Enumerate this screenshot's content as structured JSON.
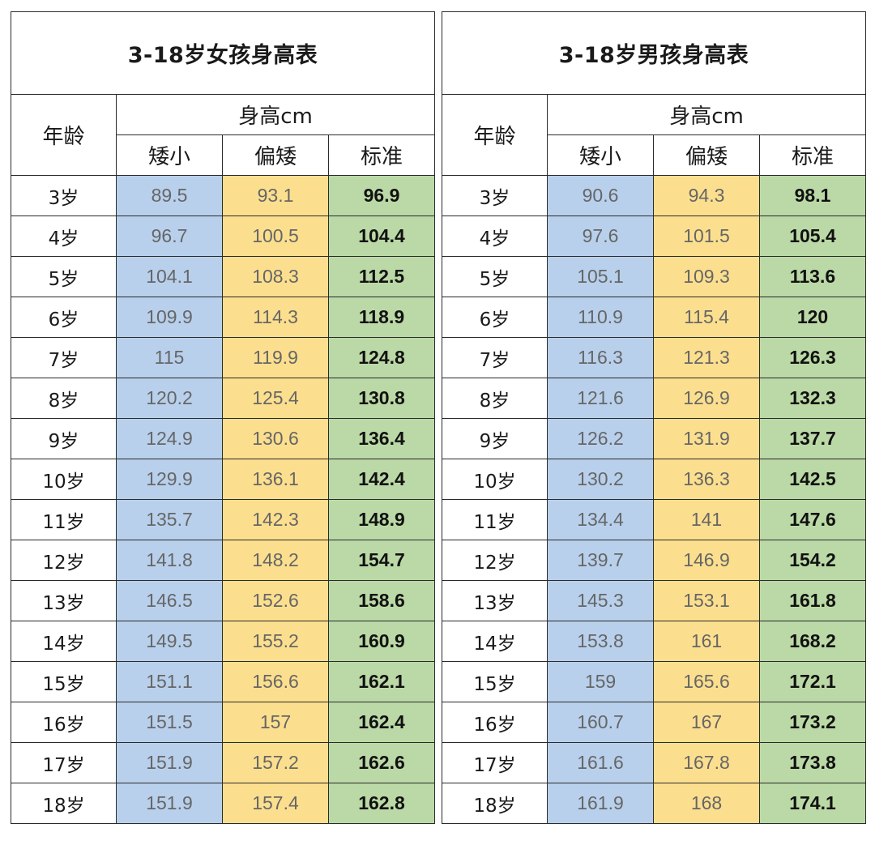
{
  "girls": {
    "title": "3-18岁女孩身高表",
    "age_header": "年龄",
    "height_header": "身高cm",
    "col_short": "矮小",
    "col_slightly_short": "偏矮",
    "col_standard": "标准",
    "rows": [
      {
        "age": "3岁",
        "short": "89.5",
        "slight": "93.1",
        "standard": "96.9"
      },
      {
        "age": "4岁",
        "short": "96.7",
        "slight": "100.5",
        "standard": "104.4"
      },
      {
        "age": "5岁",
        "short": "104.1",
        "slight": "108.3",
        "standard": "112.5"
      },
      {
        "age": "6岁",
        "short": "109.9",
        "slight": "114.3",
        "standard": "118.9"
      },
      {
        "age": "7岁",
        "short": "115",
        "slight": "119.9",
        "standard": "124.8"
      },
      {
        "age": "8岁",
        "short": "120.2",
        "slight": "125.4",
        "standard": "130.8"
      },
      {
        "age": "9岁",
        "short": "124.9",
        "slight": "130.6",
        "standard": "136.4"
      },
      {
        "age": "10岁",
        "short": "129.9",
        "slight": "136.1",
        "standard": "142.4"
      },
      {
        "age": "11岁",
        "short": "135.7",
        "slight": "142.3",
        "standard": "148.9"
      },
      {
        "age": "12岁",
        "short": "141.8",
        "slight": "148.2",
        "standard": "154.7"
      },
      {
        "age": "13岁",
        "short": "146.5",
        "slight": "152.6",
        "standard": "158.6"
      },
      {
        "age": "14岁",
        "short": "149.5",
        "slight": "155.2",
        "standard": "160.9"
      },
      {
        "age": "15岁",
        "short": "151.1",
        "slight": "156.6",
        "standard": "162.1"
      },
      {
        "age": "16岁",
        "short": "151.5",
        "slight": "157",
        "standard": "162.4"
      },
      {
        "age": "17岁",
        "short": "151.9",
        "slight": "157.2",
        "standard": "162.6"
      },
      {
        "age": "18岁",
        "short": "151.9",
        "slight": "157.4",
        "standard": "162.8"
      }
    ]
  },
  "boys": {
    "title": "3-18岁男孩身高表",
    "age_header": "年龄",
    "height_header": "身高cm",
    "col_short": "矮小",
    "col_slightly_short": "偏矮",
    "col_standard": "标准",
    "rows": [
      {
        "age": "3岁",
        "short": "90.6",
        "slight": "94.3",
        "standard": "98.1"
      },
      {
        "age": "4岁",
        "short": "97.6",
        "slight": "101.5",
        "standard": "105.4"
      },
      {
        "age": "5岁",
        "short": "105.1",
        "slight": "109.3",
        "standard": "113.6"
      },
      {
        "age": "6岁",
        "short": "110.9",
        "slight": "115.4",
        "standard": "120"
      },
      {
        "age": "7岁",
        "short": "116.3",
        "slight": "121.3",
        "standard": "126.3"
      },
      {
        "age": "8岁",
        "short": "121.6",
        "slight": "126.9",
        "standard": "132.3"
      },
      {
        "age": "9岁",
        "short": "126.2",
        "slight": "131.9",
        "standard": "137.7"
      },
      {
        "age": "10岁",
        "short": "130.2",
        "slight": "136.3",
        "standard": "142.5"
      },
      {
        "age": "11岁",
        "short": "134.4",
        "slight": "141",
        "standard": "147.6"
      },
      {
        "age": "12岁",
        "short": "139.7",
        "slight": "146.9",
        "standard": "154.2"
      },
      {
        "age": "13岁",
        "short": "145.3",
        "slight": "153.1",
        "standard": "161.8"
      },
      {
        "age": "14岁",
        "short": "153.8",
        "slight": "161",
        "standard": "168.2"
      },
      {
        "age": "15岁",
        "short": "159",
        "slight": "165.6",
        "standard": "172.1"
      },
      {
        "age": "16岁",
        "short": "160.7",
        "slight": "167",
        "standard": "173.2"
      },
      {
        "age": "17岁",
        "short": "161.6",
        "slight": "167.8",
        "standard": "173.8"
      },
      {
        "age": "18岁",
        "short": "161.9",
        "slight": "168",
        "standard": "174.1"
      }
    ]
  },
  "colors": {
    "short": "#b8d0ec",
    "slightly_short": "#fcdf8e",
    "standard": "#bbd9a6",
    "border": "#2a2a2a"
  }
}
